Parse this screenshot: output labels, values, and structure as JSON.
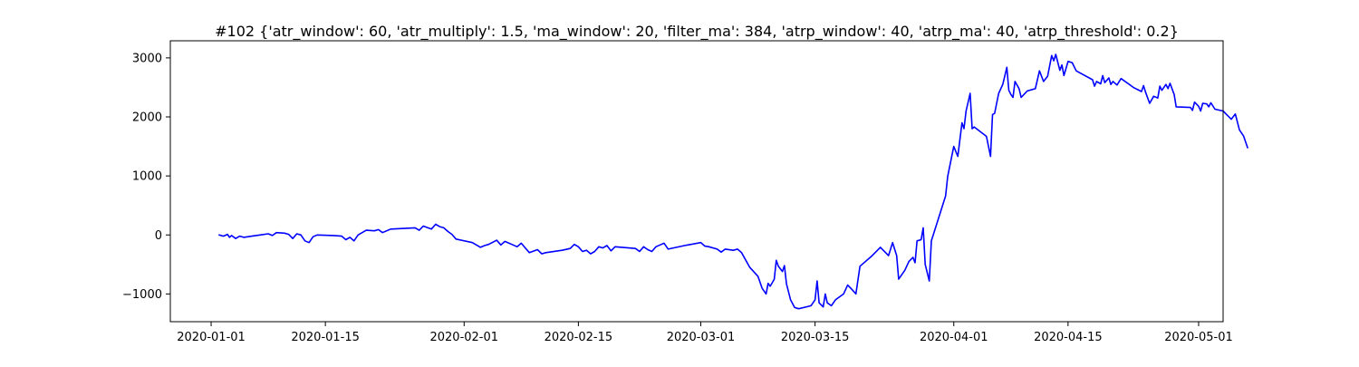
{
  "chart_data": {
    "type": "line",
    "title": "#102 {'atr_window': 60, 'atr_multiply': 1.5, 'ma_window': 20, 'filter_ma': 384, 'atrp_window': 40, 'atrp_ma': 40, 'atrp_threshold': 0.2}",
    "xlabel": "",
    "ylabel": "",
    "x_axis": {
      "type": "date",
      "range": [
        "2019-12-27",
        "2020-05-04"
      ],
      "ticks": [
        "2020-01-01",
        "2020-01-15",
        "2020-02-01",
        "2020-02-15",
        "2020-03-01",
        "2020-03-15",
        "2020-04-01",
        "2020-04-15",
        "2020-05-01"
      ]
    },
    "y_axis": {
      "range": [
        -1470,
        3290
      ],
      "ticks": [
        -1000,
        0,
        1000,
        2000,
        3000
      ],
      "tick_labels": [
        "−1000",
        "0",
        "1000",
        "2000",
        "3000"
      ]
    },
    "grid": false,
    "legend": "none",
    "series": [
      {
        "color": "#0000ff",
        "points": [
          [
            "2020-01-02",
            0
          ],
          [
            "2020-01-02 12:00",
            -20
          ],
          [
            "2020-01-03",
            10
          ],
          [
            "2020-01-03 06:00",
            -40
          ],
          [
            "2020-01-03 12:00",
            -10
          ],
          [
            "2020-01-04",
            -60
          ],
          [
            "2020-01-04 12:00",
            -20
          ],
          [
            "2020-01-05",
            -40
          ],
          [
            "2020-01-06",
            -20
          ],
          [
            "2020-01-07",
            0
          ],
          [
            "2020-01-08",
            20
          ],
          [
            "2020-01-08 12:00",
            -10
          ],
          [
            "2020-01-09",
            40
          ],
          [
            "2020-01-10",
            30
          ],
          [
            "2020-01-10 12:00",
            10
          ],
          [
            "2020-01-11",
            -60
          ],
          [
            "2020-01-11 12:00",
            20
          ],
          [
            "2020-01-12",
            0
          ],
          [
            "2020-01-12 12:00",
            -100
          ],
          [
            "2020-01-13",
            -130
          ],
          [
            "2020-01-13 12:00",
            -30
          ],
          [
            "2020-01-14",
            0
          ],
          [
            "2020-01-16",
            -10
          ],
          [
            "2020-01-17",
            -20
          ],
          [
            "2020-01-17 12:00",
            -80
          ],
          [
            "2020-01-18",
            -40
          ],
          [
            "2020-01-18 12:00",
            -100
          ],
          [
            "2020-01-19",
            0
          ],
          [
            "2020-01-20",
            80
          ],
          [
            "2020-01-21",
            70
          ],
          [
            "2020-01-21 12:00",
            90
          ],
          [
            "2020-01-22",
            40
          ],
          [
            "2020-01-23",
            100
          ],
          [
            "2020-01-26",
            120
          ],
          [
            "2020-01-26 12:00",
            80
          ],
          [
            "2020-01-27",
            150
          ],
          [
            "2020-01-28",
            100
          ],
          [
            "2020-01-28 12:00",
            180
          ],
          [
            "2020-01-29",
            140
          ],
          [
            "2020-01-29 12:00",
            120
          ],
          [
            "2020-01-30",
            60
          ],
          [
            "2020-01-30 12:00",
            10
          ],
          [
            "2020-01-31",
            -70
          ],
          [
            "2020-02-02",
            -130
          ],
          [
            "2020-02-03",
            -210
          ],
          [
            "2020-02-03 12:00",
            -180
          ],
          [
            "2020-02-04",
            -160
          ],
          [
            "2020-02-05",
            -90
          ],
          [
            "2020-02-05 12:00",
            -170
          ],
          [
            "2020-02-06",
            -110
          ],
          [
            "2020-02-07",
            -170
          ],
          [
            "2020-02-07 12:00",
            -200
          ],
          [
            "2020-02-08",
            -140
          ],
          [
            "2020-02-08 12:00",
            -220
          ],
          [
            "2020-02-09",
            -300
          ],
          [
            "2020-02-10",
            -250
          ],
          [
            "2020-02-10 12:00",
            -320
          ],
          [
            "2020-02-11",
            -300
          ],
          [
            "2020-02-13",
            -260
          ],
          [
            "2020-02-14",
            -230
          ],
          [
            "2020-02-14 12:00",
            -160
          ],
          [
            "2020-02-15",
            -200
          ],
          [
            "2020-02-15 12:00",
            -280
          ],
          [
            "2020-02-16",
            -260
          ],
          [
            "2020-02-16 12:00",
            -320
          ],
          [
            "2020-02-17",
            -280
          ],
          [
            "2020-02-17 12:00",
            -200
          ],
          [
            "2020-02-18",
            -220
          ],
          [
            "2020-02-18 12:00",
            -180
          ],
          [
            "2020-02-19",
            -270
          ],
          [
            "2020-02-19 12:00",
            -200
          ],
          [
            "2020-02-22",
            -230
          ],
          [
            "2020-02-22 12:00",
            -280
          ],
          [
            "2020-02-23",
            -200
          ],
          [
            "2020-02-23 12:00",
            -250
          ],
          [
            "2020-02-24",
            -280
          ],
          [
            "2020-02-24 12:00",
            -200
          ],
          [
            "2020-02-25",
            -170
          ],
          [
            "2020-02-25 12:00",
            -140
          ],
          [
            "2020-02-26",
            -240
          ],
          [
            "2020-02-28",
            -180
          ],
          [
            "2020-03-01",
            -130
          ],
          [
            "2020-03-01 12:00",
            -190
          ],
          [
            "2020-03-02",
            -200
          ],
          [
            "2020-03-03",
            -240
          ],
          [
            "2020-03-03 12:00",
            -290
          ],
          [
            "2020-03-04",
            -240
          ],
          [
            "2020-03-05",
            -260
          ],
          [
            "2020-03-05 12:00",
            -240
          ],
          [
            "2020-03-06",
            -300
          ],
          [
            "2020-03-07",
            -550
          ],
          [
            "2020-03-08",
            -700
          ],
          [
            "2020-03-08 12:00",
            -900
          ],
          [
            "2020-03-09",
            -1000
          ],
          [
            "2020-03-09 06:00",
            -820
          ],
          [
            "2020-03-09 12:00",
            -870
          ],
          [
            "2020-03-10",
            -750
          ],
          [
            "2020-03-10 06:00",
            -430
          ],
          [
            "2020-03-10 12:00",
            -530
          ],
          [
            "2020-03-11",
            -620
          ],
          [
            "2020-03-11 06:00",
            -520
          ],
          [
            "2020-03-11 12:00",
            -830
          ],
          [
            "2020-03-12",
            -1100
          ],
          [
            "2020-03-12 12:00",
            -1230
          ],
          [
            "2020-03-13",
            -1250
          ],
          [
            "2020-03-14 12:00",
            -1200
          ],
          [
            "2020-03-15",
            -1100
          ],
          [
            "2020-03-15 06:00",
            -780
          ],
          [
            "2020-03-15 12:00",
            -1150
          ],
          [
            "2020-03-16",
            -1220
          ],
          [
            "2020-03-16 06:00",
            -1000
          ],
          [
            "2020-03-16 12:00",
            -1150
          ],
          [
            "2020-03-17",
            -1200
          ],
          [
            "2020-03-17 12:00",
            -1100
          ],
          [
            "2020-03-18",
            -1050
          ],
          [
            "2020-03-18 12:00",
            -1000
          ],
          [
            "2020-03-19",
            -850
          ],
          [
            "2020-03-19 12:00",
            -920
          ],
          [
            "2020-03-20",
            -1000
          ],
          [
            "2020-03-20 12:00",
            -530
          ],
          [
            "2020-03-22",
            -350
          ],
          [
            "2020-03-23",
            -210
          ],
          [
            "2020-03-24",
            -350
          ],
          [
            "2020-03-24 12:00",
            -130
          ],
          [
            "2020-03-25",
            -350
          ],
          [
            "2020-03-25 06:00",
            -750
          ],
          [
            "2020-03-26",
            -600
          ],
          [
            "2020-03-26 12:00",
            -450
          ],
          [
            "2020-03-27",
            -380
          ],
          [
            "2020-03-27 06:00",
            -470
          ],
          [
            "2020-03-27 12:00",
            -100
          ],
          [
            "2020-03-28",
            -80
          ],
          [
            "2020-03-28 06:00",
            120
          ],
          [
            "2020-03-28 12:00",
            -500
          ],
          [
            "2020-03-29",
            -780
          ],
          [
            "2020-03-29 06:00",
            -100
          ],
          [
            "2020-03-31",
            660
          ],
          [
            "2020-03-31 06:00",
            990
          ],
          [
            "2020-04-01",
            1500
          ],
          [
            "2020-04-01 12:00",
            1330
          ],
          [
            "2020-04-02",
            1900
          ],
          [
            "2020-04-02 06:00",
            1800
          ],
          [
            "2020-04-02 12:00",
            2100
          ],
          [
            "2020-04-03",
            2400
          ],
          [
            "2020-04-03 06:00",
            1800
          ],
          [
            "2020-04-03 12:00",
            1830
          ],
          [
            "2020-04-05",
            1670
          ],
          [
            "2020-04-05 12:00",
            1330
          ],
          [
            "2020-04-05 18:00",
            2040
          ],
          [
            "2020-04-06",
            2060
          ],
          [
            "2020-04-06 12:00",
            2400
          ],
          [
            "2020-04-07",
            2550
          ],
          [
            "2020-04-07 12:00",
            2840
          ],
          [
            "2020-04-07 18:00",
            2450
          ],
          [
            "2020-04-08",
            2380
          ],
          [
            "2020-04-08 06:00",
            2330
          ],
          [
            "2020-04-08 12:00",
            2600
          ],
          [
            "2020-04-09",
            2480
          ],
          [
            "2020-04-09 06:00",
            2330
          ],
          [
            "2020-04-10",
            2440
          ],
          [
            "2020-04-11",
            2480
          ],
          [
            "2020-04-11 12:00",
            2780
          ],
          [
            "2020-04-12",
            2600
          ],
          [
            "2020-04-12 12:00",
            2690
          ],
          [
            "2020-04-13",
            3040
          ],
          [
            "2020-04-13 06:00",
            2950
          ],
          [
            "2020-04-13 12:00",
            3060
          ],
          [
            "2020-04-14",
            2790
          ],
          [
            "2020-04-14 06:00",
            2880
          ],
          [
            "2020-04-14 12:00",
            2700
          ],
          [
            "2020-04-15",
            2940
          ],
          [
            "2020-04-15 12:00",
            2920
          ],
          [
            "2020-04-16",
            2780
          ],
          [
            "2020-04-18",
            2630
          ],
          [
            "2020-04-18 06:00",
            2520
          ],
          [
            "2020-04-18 12:00",
            2600
          ],
          [
            "2020-04-19",
            2560
          ],
          [
            "2020-04-19 06:00",
            2700
          ],
          [
            "2020-04-19 12:00",
            2580
          ],
          [
            "2020-04-20",
            2660
          ],
          [
            "2020-04-20 06:00",
            2550
          ],
          [
            "2020-04-20 12:00",
            2600
          ],
          [
            "2020-04-21",
            2540
          ],
          [
            "2020-04-21 12:00",
            2650
          ],
          [
            "2020-04-23",
            2500
          ],
          [
            "2020-04-24",
            2430
          ],
          [
            "2020-04-24 06:00",
            2530
          ],
          [
            "2020-04-24 12:00",
            2420
          ],
          [
            "2020-04-25",
            2230
          ],
          [
            "2020-04-25 12:00",
            2350
          ],
          [
            "2020-04-26",
            2320
          ],
          [
            "2020-04-26 06:00",
            2520
          ],
          [
            "2020-04-26 12:00",
            2450
          ],
          [
            "2020-04-27",
            2550
          ],
          [
            "2020-04-27 06:00",
            2480
          ],
          [
            "2020-04-27 12:00",
            2570
          ],
          [
            "2020-04-28",
            2380
          ],
          [
            "2020-04-28 06:00",
            2170
          ],
          [
            "2020-04-30",
            2160
          ],
          [
            "2020-04-30 06:00",
            2110
          ],
          [
            "2020-04-30 12:00",
            2250
          ],
          [
            "2020-05-01",
            2180
          ],
          [
            "2020-05-01 06:00",
            2100
          ],
          [
            "2020-05-01 12:00",
            2230
          ],
          [
            "2020-05-02",
            2220
          ],
          [
            "2020-05-02 06:00",
            2170
          ],
          [
            "2020-05-02 12:00",
            2240
          ],
          [
            "2020-05-03",
            2130
          ],
          [
            "2020-05-04",
            2100
          ],
          [
            "2020-05-05",
            1960
          ],
          [
            "2020-05-05 12:00",
            2050
          ],
          [
            "2020-05-06",
            1780
          ],
          [
            "2020-05-06 12:00",
            1680
          ],
          [
            "2020-05-07",
            1480
          ]
        ]
      }
    ]
  }
}
